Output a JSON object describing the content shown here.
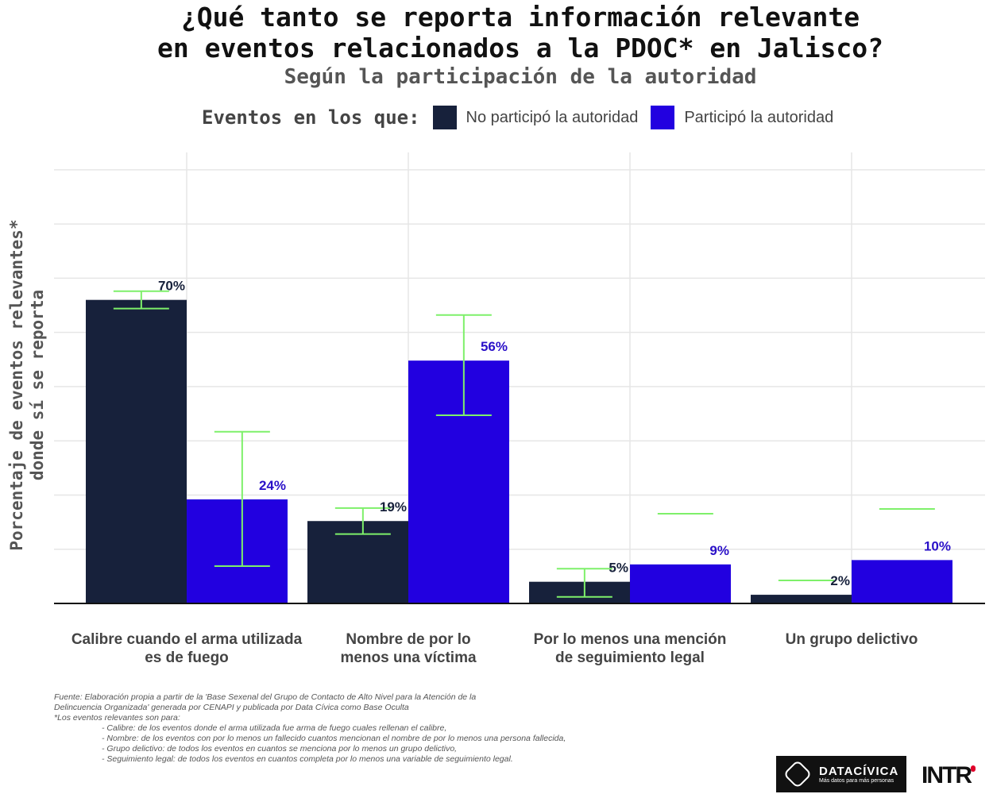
{
  "chart_data": {
    "type": "bar",
    "title": "¿Qué tanto se reporta información relevante en eventos relacionados a la PDOC* en Jalisco?",
    "title_lines": [
      "¿Qué tanto se reporta información relevante",
      "en eventos relacionados a la PDOC* en Jalisco?"
    ],
    "subtitle": "Según la participación de la autoridad",
    "legend_title": "Eventos en los que:",
    "ylabel_lines": [
      "Porcentaje de eventos relevantes*",
      "donde sí se reporta"
    ],
    "ylim": [
      0,
      104
    ],
    "grid_step": 12.5,
    "categories": [
      [
        "Calibre cuando el arma utilizada",
        "es de fuego"
      ],
      [
        "Nombre de por lo",
        "menos una víctima"
      ],
      [
        "Por lo menos una mención",
        "de seguimiento legal"
      ],
      [
        "Un grupo delictivo"
      ]
    ],
    "series": [
      {
        "name": "No participó la autoridad",
        "color": "#17213b",
        "label_color": "#17213b",
        "values": [
          70,
          19,
          5,
          2
        ],
        "labels": [
          "70%",
          "19%",
          "5%",
          "2%"
        ],
        "err_low": [
          68,
          16,
          1.5,
          null
        ],
        "err_high": [
          72,
          22,
          8,
          5.3
        ]
      },
      {
        "name": "Participó la autoridad",
        "color": "#2200e0",
        "label_color": "#2a10c8",
        "values": [
          24,
          56,
          9,
          10
        ],
        "labels": [
          "24%",
          "56%",
          "9%",
          "10%"
        ],
        "err_low": [
          8.6,
          43.4,
          null,
          null
        ],
        "err_high": [
          39.6,
          66.5,
          20.7,
          21.8
        ]
      }
    ],
    "errorbar_color": "#7ef06a"
  },
  "footnote": {
    "lines": [
      "Fuente: Elaboración propia a partir de la 'Base Sexenal del Grupo de Contacto de Alto Nivel para la Atención de la",
      "Delincuencia Organizada' generada por CENAPI y publicada por Data Cívica como Base Oculta",
      "*Los eventos relevantes son para:"
    ],
    "items": [
      "- Calibre: de los eventos donde el arma utilizada fue arma de fuego cuales rellenan el calibre,",
      "- Nombre: de los eventos con por lo menos un fallecido cuantos mencionan el nombre de por lo menos una persona fallecida,",
      "- Grupo delictivo: de todos los eventos  en cuantos  se menciona por lo menos un grupo delictivo,",
      "- Seguimiento legal: de todos los eventos en cuantos completa por lo menos una variable de seguimiento legal."
    ]
  },
  "logos": {
    "datacivica": "DATACÍVICA",
    "datacivica_tag": "Más datos para más personas",
    "intr": "INTR"
  }
}
